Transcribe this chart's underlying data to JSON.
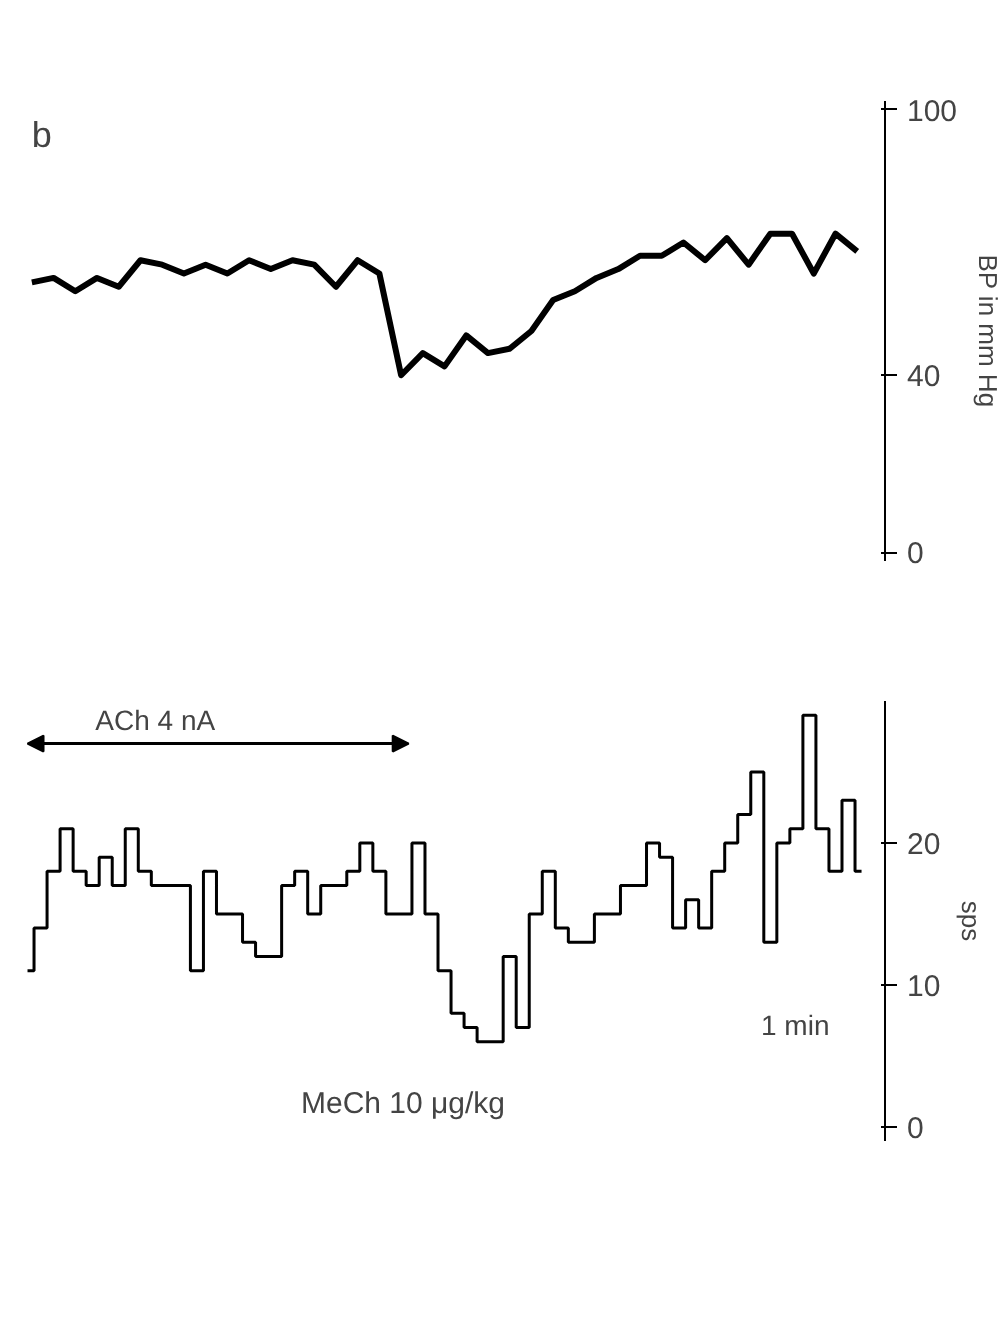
{
  "chart_data": [
    {
      "type": "line",
      "ylabel": "BP in mm Hg",
      "annotations": [
        "b"
      ],
      "categories": [
        null,
        null,
        null,
        null,
        null,
        null,
        null,
        null,
        null,
        null,
        null,
        null,
        null,
        null,
        null,
        null,
        null,
        null,
        null,
        null,
        null,
        null,
        null,
        null,
        null,
        null,
        null,
        null,
        null,
        null,
        null,
        null,
        null,
        null,
        null,
        null,
        null,
        null,
        null
      ],
      "series": [
        {
          "color": "#000000",
          "values": [
            61,
            62,
            59,
            62,
            60,
            66,
            65,
            63,
            65,
            63,
            66,
            64,
            66,
            65,
            60,
            66,
            63,
            40,
            45,
            42,
            49,
            45,
            46,
            50,
            57,
            59,
            62,
            64,
            67,
            67,
            70,
            66,
            71,
            65,
            72,
            72,
            63,
            72,
            68
          ]
        }
      ],
      "ylim": [
        -2,
        102
      ],
      "yticks": [
        0,
        40,
        100
      ],
      "tick_labels": "y",
      "grid": false
    },
    {
      "type": "step",
      "ylabel": "sps",
      "annotations": [
        "ACh 4 nA",
        "1 min",
        "MeCh 10 μg/kg"
      ],
      "categories": [
        null,
        null,
        null,
        null,
        null,
        null,
        null,
        null,
        null,
        null,
        null,
        null,
        null,
        null,
        null,
        null,
        null,
        null,
        null,
        null,
        null,
        null,
        null,
        null,
        null,
        null,
        null,
        null,
        null,
        null,
        null,
        null,
        null,
        null,
        null,
        null,
        null,
        null,
        null,
        null,
        null,
        null,
        null,
        null,
        null,
        null,
        null,
        null,
        null,
        null,
        null,
        null,
        null,
        null,
        null,
        null,
        null,
        null,
        null,
        null,
        null,
        null,
        null,
        null,
        null
      ],
      "series": [
        {
          "color": "#000000",
          "values": [
            11,
            14,
            18,
            21,
            18,
            17,
            19,
            17,
            21,
            18,
            17,
            17,
            17,
            11,
            18,
            15,
            15,
            13,
            12,
            12,
            17,
            18,
            15,
            17,
            17,
            18,
            20,
            18,
            15,
            15,
            20,
            15,
            11,
            8,
            7,
            6,
            6,
            12,
            7,
            15,
            18,
            14,
            13,
            13,
            15,
            15,
            17,
            17,
            20,
            19,
            14,
            16,
            14,
            18,
            20,
            22,
            25,
            13,
            20,
            21,
            29,
            21,
            18,
            23,
            18
          ]
        }
      ],
      "ylim": [
        -1,
        30
      ],
      "yticks": [
        0,
        10,
        20
      ],
      "tick_labels": "y",
      "grid": false
    }
  ]
}
